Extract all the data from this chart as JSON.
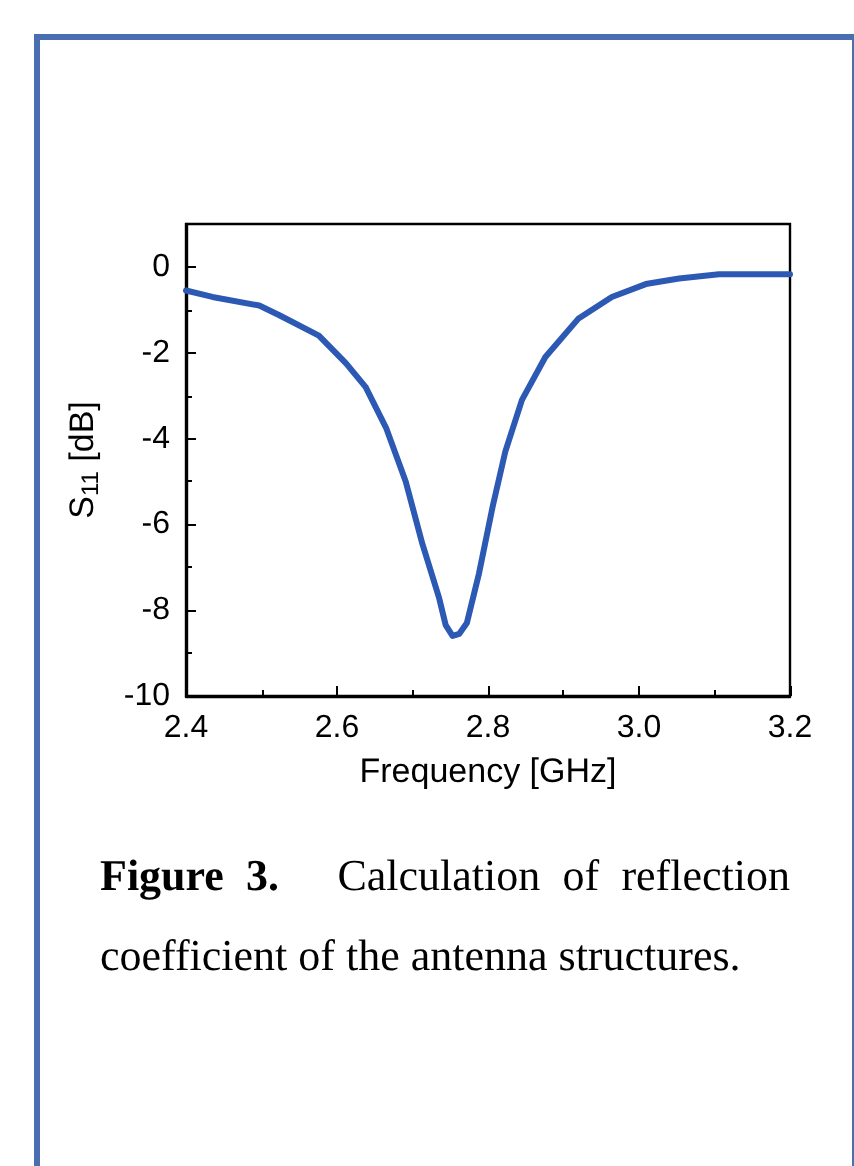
{
  "chart_data": {
    "type": "line",
    "xlabel": "Frequency [GHz]",
    "ylabel": "S$_{11}$ [dB]",
    "annotations": [
      "Figure 3.",
      "Calculation of reflection coefficient of the antenna structures."
    ],
    "xlim": [
      2.4,
      3.2
    ],
    "xticks": [
      2.4,
      2.6,
      2.8,
      {
        "value": 3,
        "label": "3.0"
      },
      3.2
    ],
    "ylim": [
      -10,
      1
    ],
    "yticks": [
      -10,
      -8,
      -6,
      -4,
      -2,
      0
    ],
    "grid": false,
    "marker": "none",
    "line_style": "solid",
    "series": [
      {
        "color": "#2b59b3",
        "x": [
          2.4,
          2.435,
          2.497,
          2.523,
          2.576,
          2.612,
          2.638,
          2.665,
          2.691,
          2.713,
          2.735,
          2.744,
          2.753,
          2.762,
          2.772,
          2.788,
          2.806,
          2.823,
          2.845,
          2.876,
          2.92,
          2.964,
          3.009,
          3.053,
          3.106,
          3.2
        ],
        "values": [
          -0.55,
          -0.7,
          -0.9,
          -1.12,
          -1.6,
          -2.25,
          -2.8,
          -3.75,
          -5.0,
          -6.45,
          -7.7,
          -8.35,
          -8.6,
          -8.55,
          -8.3,
          -7.15,
          -5.6,
          -4.3,
          -3.1,
          -2.1,
          -1.2,
          -0.7,
          -0.4,
          -0.27,
          -0.17,
          -0.17
        ]
      }
    ]
  }
}
